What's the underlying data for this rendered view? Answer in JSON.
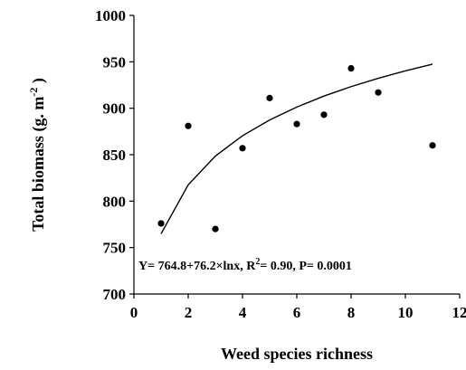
{
  "chart_data": {
    "type": "scatter",
    "x": [
      1,
      2,
      3,
      4,
      5,
      6,
      7,
      8,
      9,
      11
    ],
    "values": [
      776,
      881,
      770,
      857,
      911,
      883,
      893,
      943,
      917,
      860
    ],
    "color": "#000000",
    "fit": {
      "x": [
        1,
        2,
        3,
        4,
        5,
        6,
        7,
        8,
        9,
        10,
        11
      ],
      "values": [
        764.8,
        817.6,
        848.5,
        870.4,
        887.4,
        901.3,
        913.1,
        923.3,
        932.2,
        940.3,
        947.5
      ],
      "color": "#000000"
    },
    "xlim": [
      0,
      12
    ],
    "xticks": [
      0,
      2,
      4,
      6,
      8,
      10,
      12
    ],
    "ylim": [
      700,
      1000
    ],
    "yticks": [
      700,
      750,
      800,
      850,
      900,
      950,
      1000
    ],
    "xlabel": "Weed species richness",
    "ylabel": [
      "Total biomass (g. m",
      "-2",
      " )"
    ],
    "annotation": [
      "Y= 764.8+76.2×lnx, R",
      "2",
      "= 0.90, P= 0.0001"
    ]
  }
}
